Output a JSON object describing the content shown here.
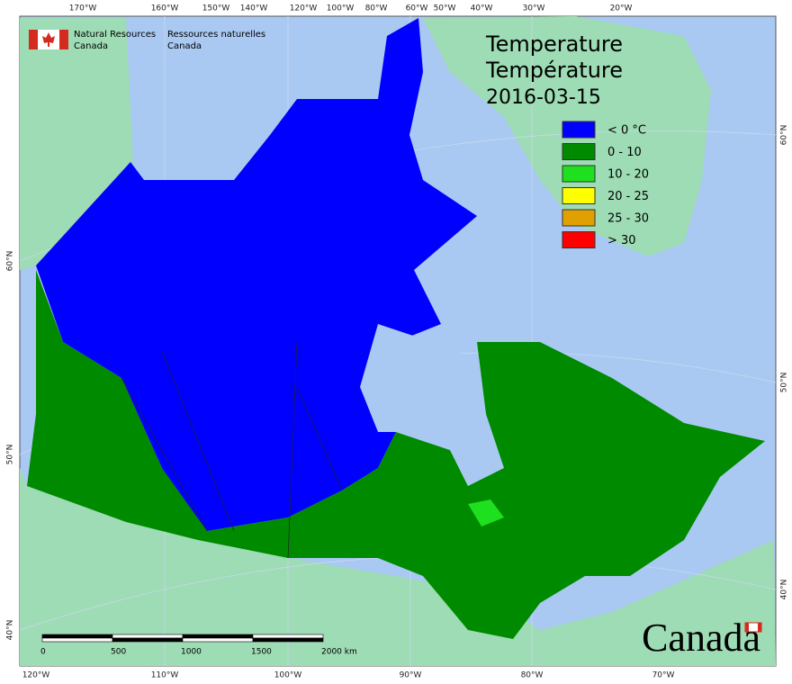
{
  "header": {
    "agency_en": [
      "Natural Resources",
      "Canada"
    ],
    "agency_fr": [
      "Ressources naturelles",
      "Canada"
    ]
  },
  "title": {
    "en": "Temperature",
    "fr": "Température",
    "date": "2016-03-15"
  },
  "legend": [
    {
      "label": "< 0 °C",
      "color": "#0000ff"
    },
    {
      "label": "0 - 10",
      "color": "#008a00"
    },
    {
      "label": "10 - 20",
      "color": "#1ee01e"
    },
    {
      "label": "20 - 25",
      "color": "#ffff00"
    },
    {
      "label": "25 - 30",
      "color": "#e0a000"
    },
    {
      "label": "> 30",
      "color": "#ff0000"
    }
  ],
  "graticule": {
    "top": [
      "170°W",
      "160°W",
      "150°W",
      "140°W",
      "120°W",
      "100°W",
      "80°W",
      "60°W",
      "50°W",
      "40°W",
      "30°W",
      "20°W"
    ],
    "bottom": [
      "120°W",
      "110°W",
      "100°W",
      "90°W",
      "80°W",
      "70°W"
    ],
    "left": [
      "60°N",
      "50°N",
      "40°N"
    ],
    "right": [
      "60°N",
      "50°N",
      "40°N"
    ]
  },
  "scale_bar": [
    "0",
    "500",
    "1000",
    "1500",
    "2000 km"
  ],
  "wordmark": "Canada"
}
